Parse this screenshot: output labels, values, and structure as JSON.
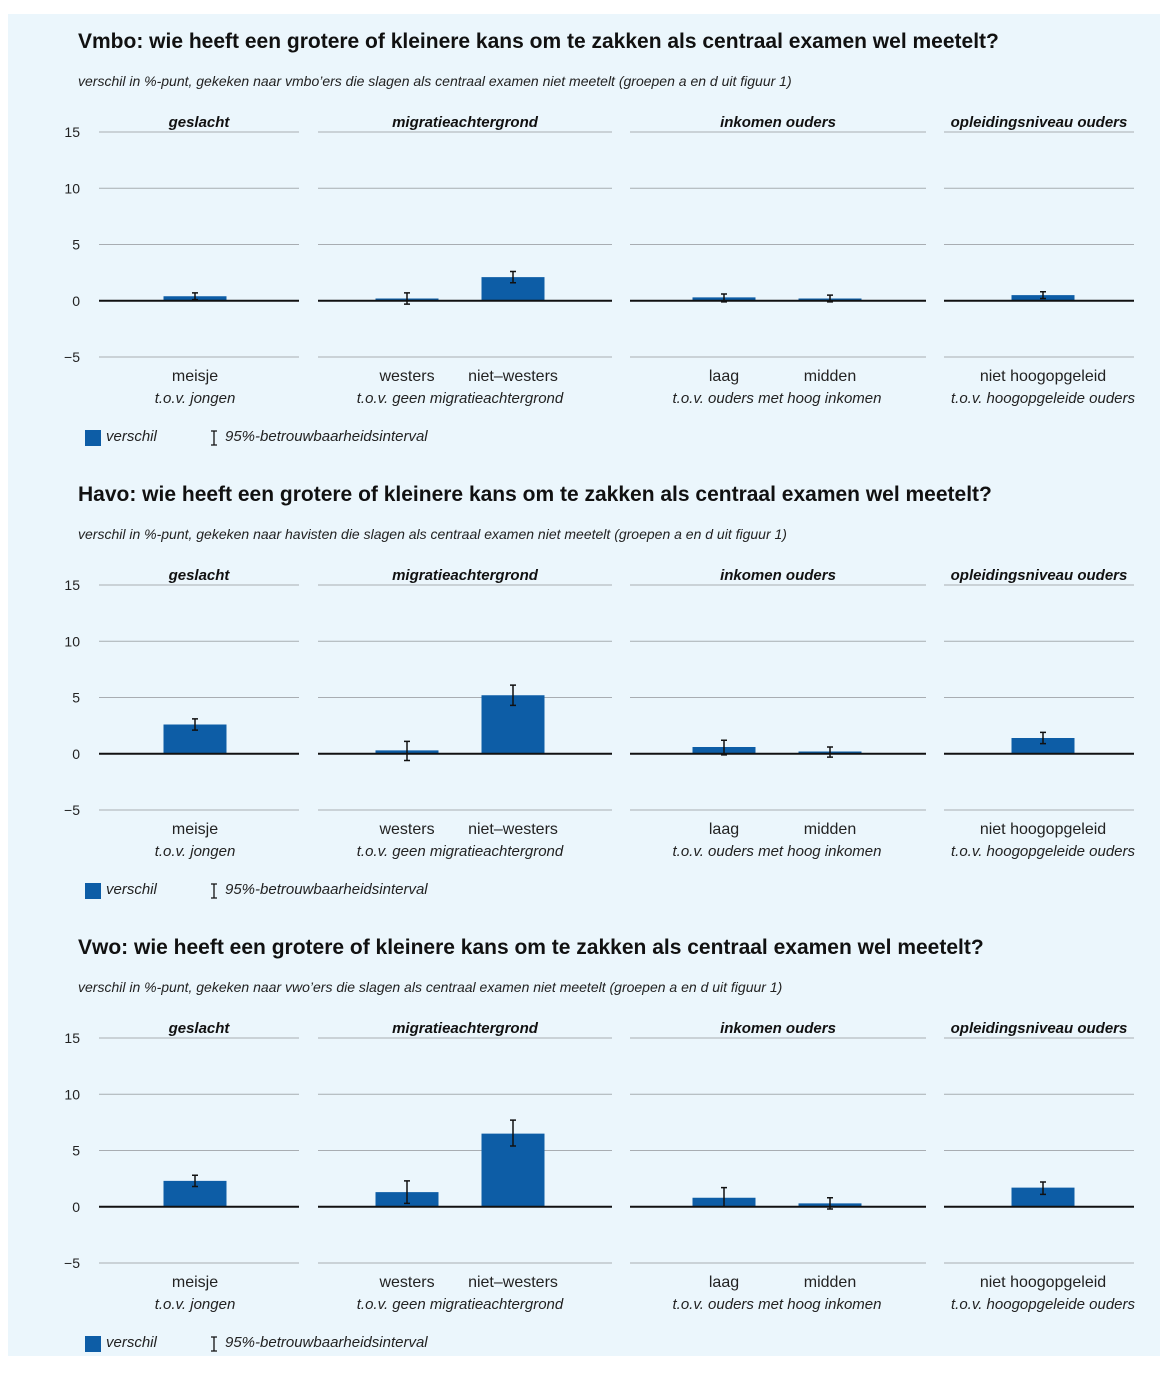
{
  "colors": {
    "bar": "#0d5da6",
    "grid": "#a8adb2",
    "axis": "#111111",
    "background": "#ebf6fc"
  },
  "legend": {
    "bar_label": "verschil",
    "ci_label": "95%-betrouwbaarheidsinterval"
  },
  "panels": [
    {
      "title": "Vmbo: wie heeft een grotere of kleinere kans om te zakken als centraal examen wel meetelt?",
      "subtitle": "verschil in %-punt, gekeken naar vmbo’ers die slagen als centraal examen niet meetelt (groepen a en d uit figuur 1)"
    },
    {
      "title": "Havo: wie heeft een grotere of kleinere kans om te zakken als centraal examen wel meetelt?",
      "subtitle": "verschil in %-punt, gekeken naar havisten die slagen als centraal examen niet meetelt (groepen a en d uit figuur 1)"
    },
    {
      "title": "Vwo: wie heeft een grotere of kleinere kans om te zakken als centraal examen wel meetelt?",
      "subtitle": "verschil in %-punt, gekeken naar vwo’ers die slagen als centraal examen niet meetelt (groepen a en d uit figuur 1)"
    }
  ],
  "chart_data": [
    {
      "type": "bar",
      "ylim": [
        -5,
        15
      ],
      "yticks": [
        "15",
        "10",
        "5",
        "0",
        "−5"
      ],
      "groups": [
        {
          "name": "geslacht",
          "reference": "t.o.v. jongen",
          "bars": [
            {
              "label": "meisje",
              "value": 0.4,
              "ci": [
                0.1,
                0.7
              ]
            }
          ]
        },
        {
          "name": "migratieachtergrond",
          "reference": "t.o.v. geen migratieachtergrond",
          "bars": [
            {
              "label": "westers",
              "value": 0.2,
              "ci": [
                -0.3,
                0.7
              ]
            },
            {
              "label": "niet–westers",
              "value": 2.1,
              "ci": [
                1.6,
                2.6
              ]
            }
          ]
        },
        {
          "name": "inkomen ouders",
          "reference": "t.o.v. ouders met hoog inkomen",
          "bars": [
            {
              "label": "laag",
              "value": 0.3,
              "ci": [
                -0.1,
                0.6
              ]
            },
            {
              "label": "midden",
              "value": 0.2,
              "ci": [
                -0.1,
                0.5
              ]
            }
          ]
        },
        {
          "name": "opleidingsniveau ouders",
          "reference": "t.o.v. hoogopgeleide ouders",
          "bars": [
            {
              "label": "niet hoogopgeleid",
              "value": 0.5,
              "ci": [
                0.2,
                0.8
              ]
            }
          ]
        }
      ]
    },
    {
      "type": "bar",
      "ylim": [
        -5,
        15
      ],
      "yticks": [
        "15",
        "10",
        "5",
        "0",
        "−5"
      ],
      "groups": [
        {
          "name": "geslacht",
          "reference": "t.o.v. jongen",
          "bars": [
            {
              "label": "meisje",
              "value": 2.6,
              "ci": [
                2.1,
                3.1
              ]
            }
          ]
        },
        {
          "name": "migratieachtergrond",
          "reference": "t.o.v. geen migratieachtergrond",
          "bars": [
            {
              "label": "westers",
              "value": 0.3,
              "ci": [
                -0.6,
                1.1
              ]
            },
            {
              "label": "niet–westers",
              "value": 5.2,
              "ci": [
                4.3,
                6.1
              ]
            }
          ]
        },
        {
          "name": "inkomen ouders",
          "reference": "t.o.v. ouders met hoog inkomen",
          "bars": [
            {
              "label": "laag",
              "value": 0.6,
              "ci": [
                -0.1,
                1.2
              ]
            },
            {
              "label": "midden",
              "value": 0.2,
              "ci": [
                -0.3,
                0.6
              ]
            }
          ]
        },
        {
          "name": "opleidingsniveau ouders",
          "reference": "t.o.v. hoogopgeleide ouders",
          "bars": [
            {
              "label": "niet hoogopgeleid",
              "value": 1.4,
              "ci": [
                0.9,
                1.9
              ]
            }
          ]
        }
      ]
    },
    {
      "type": "bar",
      "ylim": [
        -5,
        15
      ],
      "yticks": [
        "15",
        "10",
        "5",
        "0",
        "−5"
      ],
      "groups": [
        {
          "name": "geslacht",
          "reference": "t.o.v. jongen",
          "bars": [
            {
              "label": "meisje",
              "value": 2.3,
              "ci": [
                1.8,
                2.8
              ]
            }
          ]
        },
        {
          "name": "migratieachtergrond",
          "reference": "t.o.v. geen migratieachtergrond",
          "bars": [
            {
              "label": "westers",
              "value": 1.3,
              "ci": [
                0.3,
                2.3
              ]
            },
            {
              "label": "niet–westers",
              "value": 6.5,
              "ci": [
                5.4,
                7.7
              ]
            }
          ]
        },
        {
          "name": "inkomen ouders",
          "reference": "t.o.v. ouders met hoog inkomen",
          "bars": [
            {
              "label": "laag",
              "value": 0.8,
              "ci": [
                0.0,
                1.7
              ]
            },
            {
              "label": "midden",
              "value": 0.3,
              "ci": [
                -0.2,
                0.8
              ]
            }
          ]
        },
        {
          "name": "opleidingsniveau ouders",
          "reference": "t.o.v. hoogopgeleide ouders",
          "bars": [
            {
              "label": "niet hoogopgeleid",
              "value": 1.7,
              "ci": [
                1.1,
                2.2
              ]
            }
          ]
        }
      ]
    }
  ]
}
